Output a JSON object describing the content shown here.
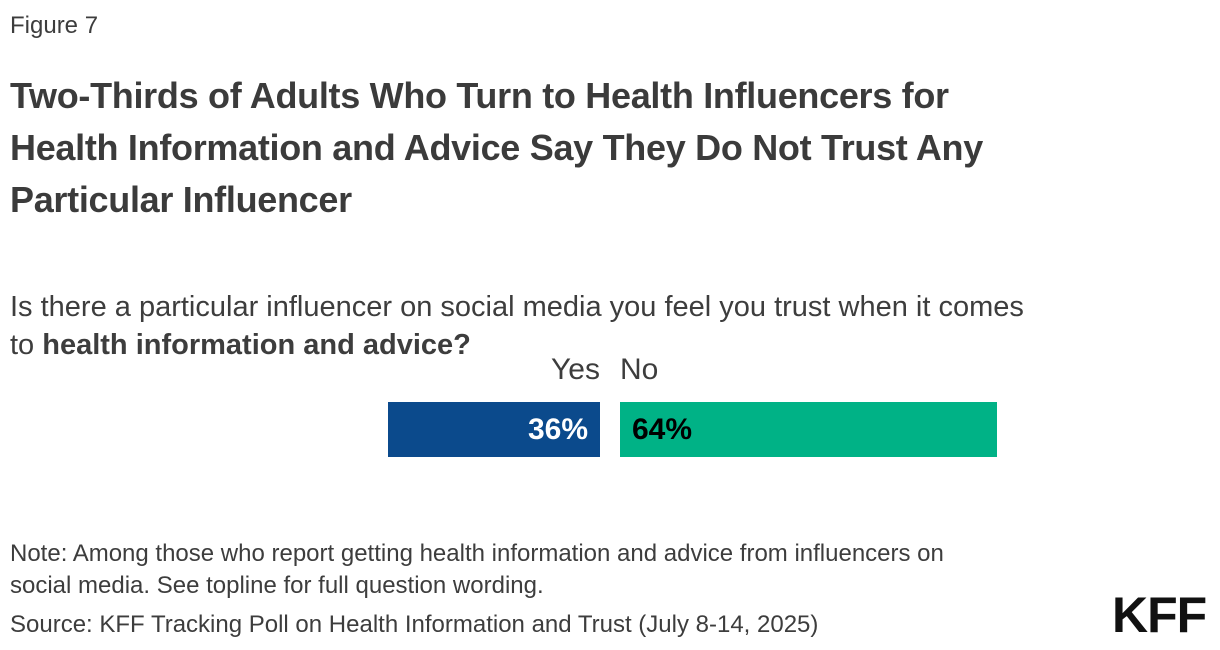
{
  "figure_label": "Figure 7",
  "title": "Two-Thirds of Adults Who Turn to Health Influencers for\nHealth Information and Advice Say They Do Not Trust Any\nParticular Influencer",
  "subtitle": {
    "regular": "Is there a particular influencer on social media you feel you trust when it comes\nto ",
    "bold": "health information and advice?"
  },
  "chart_data": {
    "type": "bar",
    "orientation": "horizontal",
    "title": "Is there a particular influencer on social media you feel you trust when it comes to health information and advice?",
    "categories": [
      "Yes",
      "No"
    ],
    "values": [
      36,
      64
    ],
    "value_labels": [
      "36%",
      "64%"
    ],
    "bar_colors": [
      "#0B4A8C",
      "#00B286"
    ],
    "value_label_colors": [
      "#ffffff",
      "#000000"
    ],
    "grid": false,
    "legend_position": "none",
    "axis_labels": "none"
  },
  "note": "Note: Among those who report getting health information and advice from influencers on\nsocial media. See topline for full question wording.",
  "source": "Source: KFF Tracking Poll on Health Information and Trust (July 8-14, 2025)",
  "logo_text": "KFF",
  "colors": {
    "background": "#ffffff",
    "text": "#3d3d3d",
    "yes_bar": "#0B4A8C",
    "no_bar": "#00B286"
  }
}
